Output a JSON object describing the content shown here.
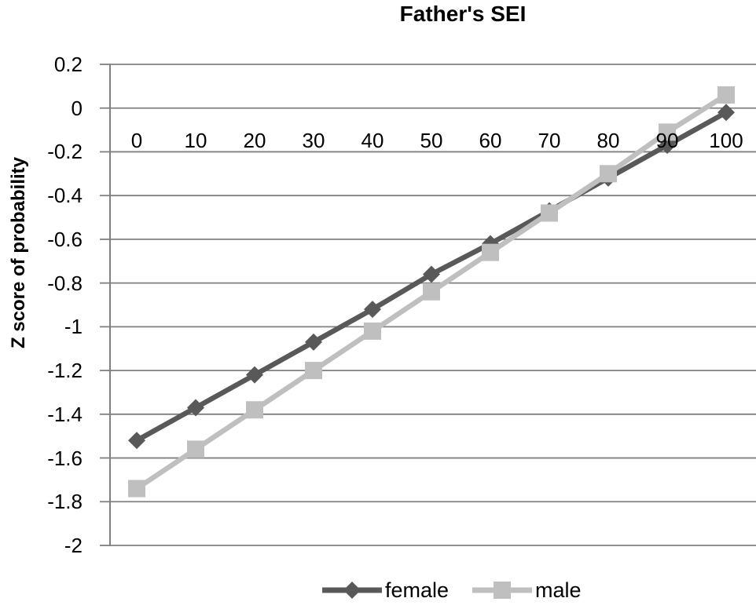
{
  "chart_data": {
    "type": "line",
    "title": "Father's SEI",
    "xlabel": "",
    "ylabel": "Z score of probability",
    "categories": [
      "0",
      "10",
      "20",
      "30",
      "40",
      "50",
      "60",
      "70",
      "80",
      "90",
      "100"
    ],
    "series": [
      {
        "name": "female",
        "marker": "diamond",
        "color": "#595959",
        "values": [
          -1.52,
          -1.37,
          -1.22,
          -1.07,
          -0.92,
          -0.76,
          -0.62,
          -0.47,
          -0.32,
          -0.17,
          -0.02
        ]
      },
      {
        "name": "male",
        "marker": "square",
        "color": "#bfbfbf",
        "values": [
          -1.74,
          -1.56,
          -1.38,
          -1.2,
          -1.02,
          -0.84,
          -0.66,
          -0.48,
          -0.3,
          -0.11,
          0.06
        ]
      }
    ],
    "ylim": [
      -2,
      0.2
    ],
    "yticks": [
      "0.2",
      "0",
      "-0.2",
      "-0.4",
      "-0.6",
      "-0.8",
      "-1",
      "-1.2",
      "-1.4",
      "-1.6",
      "-1.8",
      "-2"
    ],
    "grid": true,
    "legend_position": "bottom"
  },
  "colors": {
    "gridline": "#808080",
    "axis": "#808080",
    "text": "#000000",
    "female": "#595959",
    "male": "#bfbfbf"
  }
}
